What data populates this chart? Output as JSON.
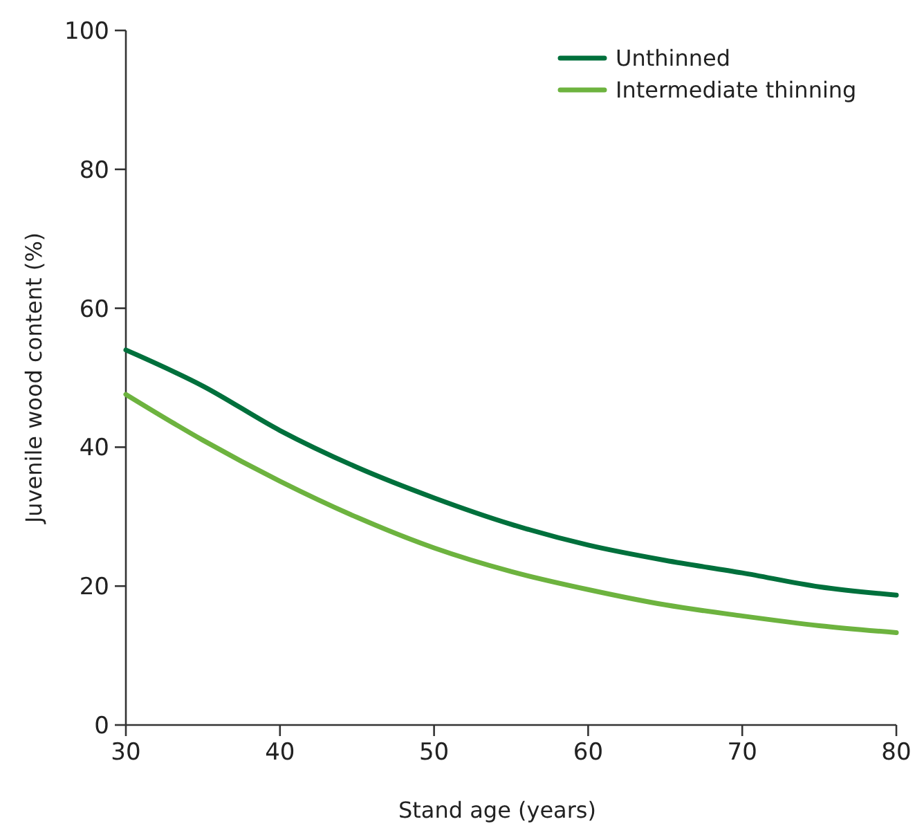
{
  "chart_data": {
    "type": "line",
    "xlabel": "Stand age (years)",
    "ylabel": "Juvenile wood content (%)",
    "x": [
      30,
      35,
      40,
      45,
      50,
      55,
      60,
      65,
      70,
      75,
      80
    ],
    "series": [
      {
        "name": "Unthinned",
        "color": "#00703c",
        "values": [
          54.0,
          48.8,
          42.4,
          37.1,
          32.7,
          28.9,
          25.9,
          23.7,
          21.9,
          19.9,
          18.7
        ]
      },
      {
        "name": "Intermediate thinning",
        "color": "#6db33f",
        "values": [
          47.6,
          41.0,
          35.1,
          29.9,
          25.5,
          22.1,
          19.5,
          17.3,
          15.7,
          14.3,
          13.3
        ]
      }
    ],
    "xlim": [
      30,
      80
    ],
    "xticks": [
      30,
      40,
      50,
      60,
      70,
      80
    ],
    "ylim": [
      0,
      100
    ],
    "yticks": [
      0,
      20,
      40,
      60,
      80,
      100
    ],
    "grid": false,
    "legend": "top right",
    "marker": "none",
    "line_style": "solid"
  }
}
